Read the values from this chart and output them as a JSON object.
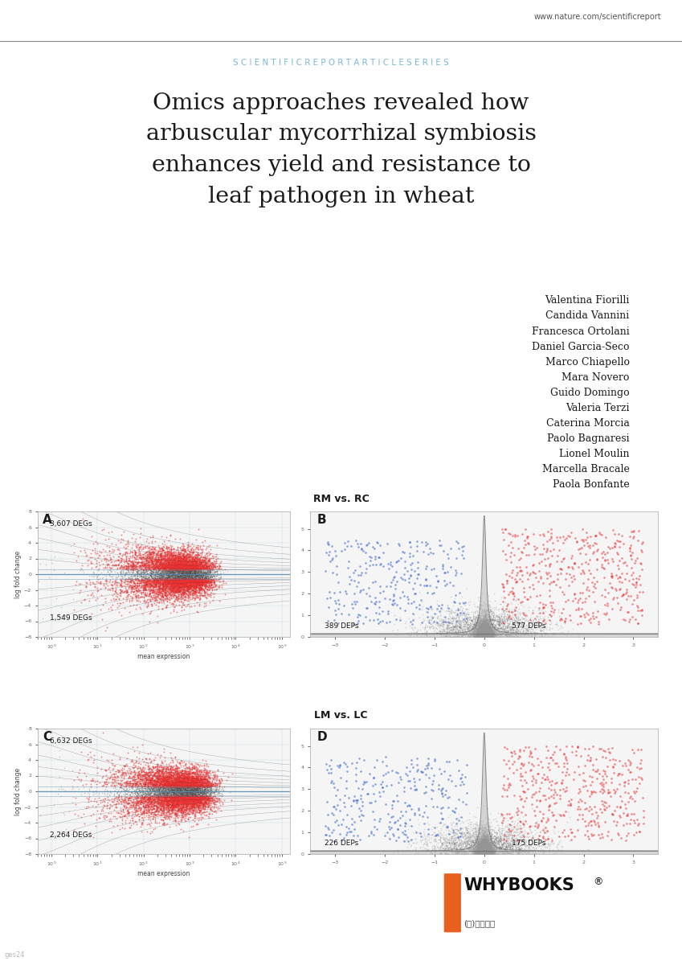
{
  "title_lines": [
    "Omics approaches revealed how",
    "arbuscular mycorrhizal symbiosis",
    "enhances yield and resistance to",
    "leaf pathogen in wheat"
  ],
  "authors": [
    "Valentina Fiorilli",
    "Candida Vannini",
    "Francesca Ortolani",
    "Daniel Garcia-Seco",
    "Marco Chiapello",
    "Mara Novero",
    "Guido Domingo",
    "Valeria Terzi",
    "Caterina Morcia",
    "Paolo Bagnaresi",
    "Lionel Moulin",
    "Marcella Bracale",
    "Paola Bonfante"
  ],
  "header_url": "www.nature.com/scientificreport",
  "header_series": "S C I E N T I F I C R E P O R T A R T I C L E S E R I E S",
  "panel_AB_title": "RM vs. RC",
  "panel_CD_title": "LM vs. LC",
  "panel_A_label": "A",
  "panel_B_label": "B",
  "panel_C_label": "C",
  "panel_D_label": "D",
  "panel_A_top_text": "3,607 DEGs",
  "panel_A_bot_text": "1,549 DEGs",
  "panel_B_left_text": "389 DEPs",
  "panel_B_right_text": "577 DEPs",
  "panel_C_top_text": "6,632 DEGs",
  "panel_C_bot_text": "2,264 DEGs",
  "panel_D_left_text": "226 DEPs",
  "panel_D_right_text": "175 DEPs",
  "bg_color": "#ffffff",
  "text_color": "#1a1a1a",
  "header_color": "#7ab8d4",
  "red_color": "#e83030",
  "blue_color": "#3060d0",
  "gray_color": "#555555",
  "light_gray": "#aaaaaa",
  "whybooks_color": "#111111",
  "footer_orange": "#e86020"
}
